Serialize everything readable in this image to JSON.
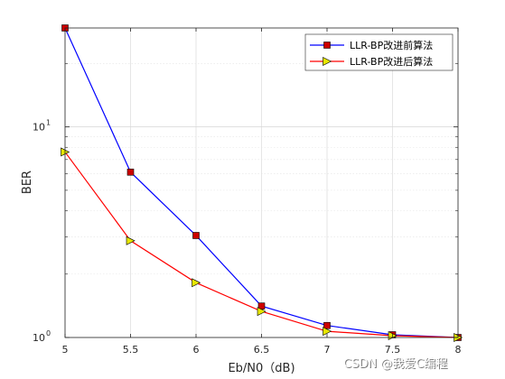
{
  "chart_data": {
    "type": "line",
    "xlabel": "Eb/N0（dB)",
    "ylabel": "BER",
    "x": [
      5,
      5.5,
      6,
      6.5,
      7,
      7.5,
      8
    ],
    "x_ticks": [
      "5",
      "5.5",
      "6",
      "6.5",
      "7",
      "7.5",
      "8"
    ],
    "xlim": [
      5,
      8
    ],
    "y_scale": "log",
    "ylim": [
      1,
      29.5
    ],
    "y_ticks": [
      {
        "value": 1,
        "base": "10",
        "exp": "0"
      },
      {
        "value": 10,
        "base": "10",
        "exp": "1"
      }
    ],
    "grid": true,
    "legend_position": "top-right",
    "series": [
      {
        "name": "LLR-BP改进前算法",
        "color": "#0000ff",
        "marker": "square",
        "marker_color": "#cc0000",
        "values": [
          29.5,
          6.1,
          3.05,
          1.41,
          1.14,
          1.03,
          1.0
        ]
      },
      {
        "name": "LLR-BP改进后算法",
        "color": "#ff0000",
        "marker": "triangle-right",
        "marker_color": "#e6e600",
        "values": [
          7.6,
          2.88,
          1.82,
          1.33,
          1.07,
          1.02,
          1.0
        ]
      }
    ]
  },
  "watermark": "CSDN @我爱C编程"
}
